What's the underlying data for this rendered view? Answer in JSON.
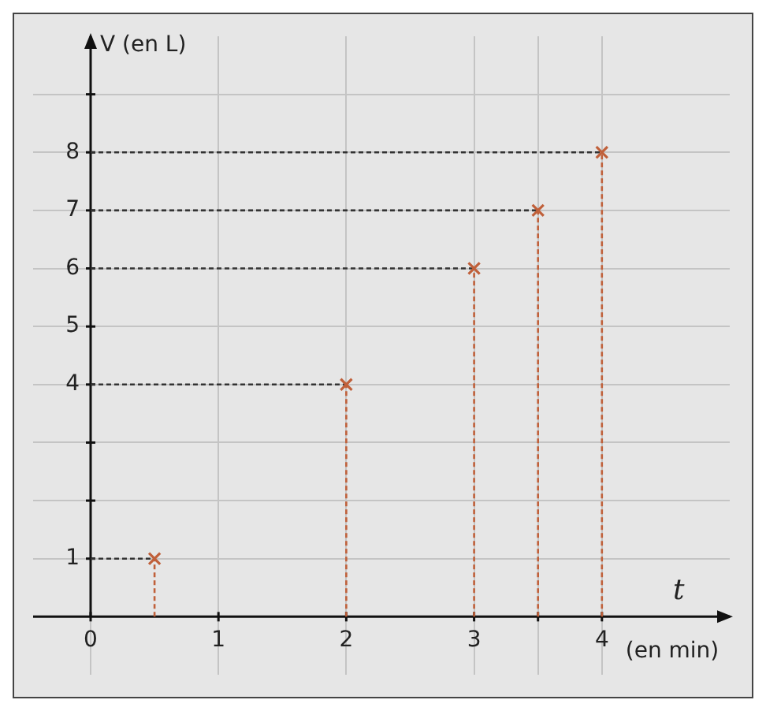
{
  "chart_data": {
    "type": "scatter",
    "xlabel": "t",
    "ylabel": "V (en L)",
    "annotations": [
      "(en min)"
    ],
    "x": [
      0.5,
      2,
      3,
      3.5,
      4
    ],
    "series": [
      {
        "color": "#c0603a",
        "values": [
          1,
          4,
          6,
          7,
          8
        ]
      },
      {
        "type": "line",
        "marker": "none",
        "color": "#333333",
        "x": [
          0,
          0.5
        ],
        "values": [
          1,
          1
        ]
      },
      {
        "type": "line",
        "marker": "none",
        "color": "#333333",
        "x": [
          0,
          2
        ],
        "values": [
          4,
          4
        ]
      },
      {
        "type": "line",
        "marker": "none",
        "color": "#333333",
        "x": [
          0,
          3
        ],
        "values": [
          6,
          6
        ]
      },
      {
        "type": "line",
        "marker": "none",
        "color": "#333333",
        "x": [
          0,
          3.5
        ],
        "values": [
          7,
          7
        ]
      },
      {
        "type": "line",
        "marker": "none",
        "color": "#333333",
        "x": [
          0,
          4
        ],
        "values": [
          8,
          8
        ]
      },
      {
        "type": "line",
        "marker": "none",
        "color": "#c0603a",
        "x": [
          0.5,
          0.5
        ],
        "values": [
          0,
          1
        ]
      },
      {
        "type": "line",
        "marker": "none",
        "color": "#c0603a",
        "x": [
          2,
          2
        ],
        "values": [
          0,
          4
        ]
      },
      {
        "type": "line",
        "marker": "none",
        "color": "#c0603a",
        "x": [
          3,
          3
        ],
        "values": [
          0,
          6
        ]
      },
      {
        "type": "line",
        "marker": "none",
        "color": "#c0603a",
        "x": [
          3.5,
          3.5
        ],
        "values": [
          0,
          7
        ]
      },
      {
        "type": "line",
        "marker": "none",
        "color": "#c0603a",
        "x": [
          4,
          4
        ],
        "values": [
          0,
          8
        ]
      }
    ],
    "xlim": [
      -0.45,
      5
    ],
    "ylim": [
      -1,
      10
    ],
    "xticks": [
      0,
      1,
      2,
      3,
      {
        "value": 3.5,
        "label": null
      },
      4
    ],
    "yticks": [
      1,
      {
        "value": 2,
        "label": null
      },
      {
        "value": 3,
        "label": null
      },
      4,
      5,
      6,
      7,
      8,
      {
        "value": 9,
        "label": null
      }
    ],
    "grid": true,
    "marker": "cross",
    "line_style": "dashed",
    "legend": false
  }
}
